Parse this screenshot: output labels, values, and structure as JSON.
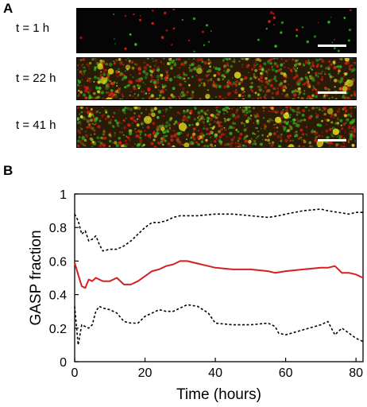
{
  "panels": {
    "a_label": "A",
    "b_label": "B"
  },
  "micrographs": [
    {
      "label": "t = 1 h",
      "density": "sparse"
    },
    {
      "label": "t = 22 h",
      "density": "dense"
    },
    {
      "label": "t = 41 h",
      "density": "dense"
    }
  ],
  "colors": {
    "mean_line": "#d42020",
    "bound_line": "#000000",
    "channel_red": "#e02010",
    "channel_green": "#30c020",
    "channel_yellow": "#e8e020"
  },
  "chart_data": {
    "type": "line",
    "title": "",
    "xlabel": "Time (hours)",
    "ylabel": "GASP fraction",
    "xlim": [
      0,
      82
    ],
    "ylim": [
      0,
      1
    ],
    "xticks": [
      "0",
      "20",
      "40",
      "60",
      "80"
    ],
    "yticks": [
      "0",
      "0.2",
      "0.4",
      "0.6",
      "0.8",
      "1"
    ],
    "grid": false,
    "series": [
      {
        "style": "dashed",
        "color": "#000000",
        "x": [
          0,
          1,
          2,
          3,
          4,
          5,
          6,
          7,
          8,
          10,
          12,
          14,
          16,
          18,
          20,
          22,
          24,
          26,
          28,
          30,
          32,
          35,
          40,
          45,
          50,
          55,
          58,
          60,
          65,
          70,
          72,
          75,
          78,
          80,
          82
        ],
        "y": [
          0.88,
          0.84,
          0.76,
          0.78,
          0.72,
          0.73,
          0.75,
          0.7,
          0.66,
          0.67,
          0.67,
          0.69,
          0.72,
          0.76,
          0.8,
          0.83,
          0.83,
          0.84,
          0.86,
          0.87,
          0.87,
          0.87,
          0.88,
          0.88,
          0.87,
          0.86,
          0.87,
          0.88,
          0.9,
          0.91,
          0.9,
          0.89,
          0.88,
          0.89,
          0.89
        ]
      },
      {
        "style": "solid",
        "color": "#d42020",
        "x": [
          0,
          1,
          2,
          3,
          4,
          5,
          6,
          8,
          10,
          12,
          14,
          16,
          18,
          20,
          22,
          24,
          26,
          28,
          30,
          32,
          34,
          36,
          40,
          45,
          50,
          55,
          57,
          60,
          65,
          70,
          72,
          74,
          76,
          78,
          80,
          82
        ],
        "y": [
          0.59,
          0.52,
          0.45,
          0.44,
          0.49,
          0.48,
          0.5,
          0.48,
          0.48,
          0.5,
          0.46,
          0.46,
          0.48,
          0.51,
          0.54,
          0.55,
          0.57,
          0.58,
          0.6,
          0.6,
          0.59,
          0.58,
          0.56,
          0.55,
          0.55,
          0.54,
          0.53,
          0.54,
          0.55,
          0.56,
          0.56,
          0.57,
          0.53,
          0.53,
          0.52,
          0.5
        ]
      },
      {
        "style": "dashed",
        "color": "#000000",
        "x": [
          0,
          1,
          2,
          3,
          4,
          5,
          6,
          7,
          8,
          10,
          12,
          14,
          16,
          18,
          20,
          22,
          24,
          26,
          28,
          30,
          32,
          35,
          38,
          40,
          45,
          50,
          55,
          57,
          58,
          60,
          65,
          70,
          72,
          74,
          76,
          78,
          80,
          82
        ],
        "y": [
          0.33,
          0.1,
          0.22,
          0.21,
          0.2,
          0.22,
          0.3,
          0.33,
          0.32,
          0.31,
          0.29,
          0.24,
          0.23,
          0.23,
          0.27,
          0.29,
          0.31,
          0.3,
          0.3,
          0.32,
          0.34,
          0.33,
          0.29,
          0.23,
          0.22,
          0.22,
          0.23,
          0.21,
          0.17,
          0.16,
          0.19,
          0.22,
          0.24,
          0.16,
          0.2,
          0.17,
          0.14,
          0.12
        ]
      }
    ]
  }
}
